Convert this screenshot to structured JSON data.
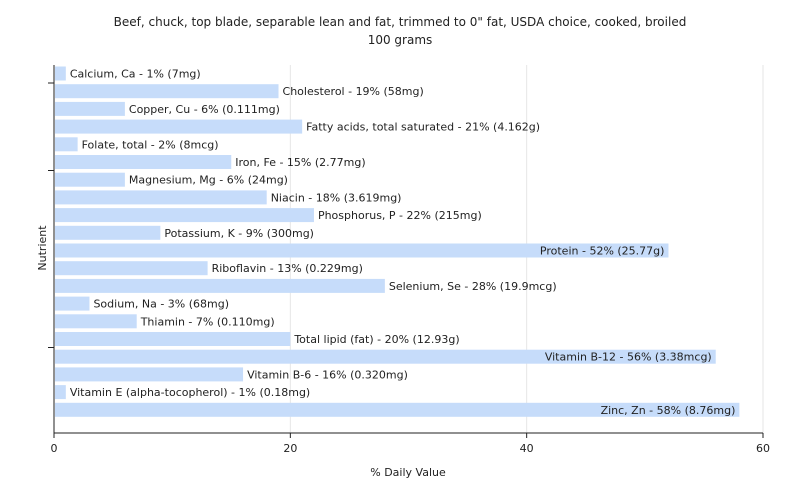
{
  "chart_data": {
    "type": "bar",
    "orientation": "horizontal",
    "title": "Beef, chuck, top blade, separable lean and fat, trimmed to 0\" fat, USDA choice, cooked, broiled",
    "subtitle": "100 grams",
    "xlabel": "% Daily Value",
    "ylabel": "Nutrient",
    "xlim": [
      0,
      60
    ],
    "xticks": [
      0,
      20,
      40,
      60
    ],
    "grid": true,
    "bar_color": "#c6dcfa",
    "bars": [
      {
        "value": 1,
        "label": "Calcium, Ca - 1% (7mg)"
      },
      {
        "value": 19,
        "label": "Cholesterol - 19% (58mg)"
      },
      {
        "value": 6,
        "label": "Copper, Cu - 6% (0.111mg)"
      },
      {
        "value": 21,
        "label": "Fatty acids, total saturated - 21% (4.162g)"
      },
      {
        "value": 2,
        "label": "Folate, total - 2% (8mcg)"
      },
      {
        "value": 15,
        "label": "Iron, Fe - 15% (2.77mg)"
      },
      {
        "value": 6,
        "label": "Magnesium, Mg - 6% (24mg)"
      },
      {
        "value": 18,
        "label": "Niacin - 18% (3.619mg)"
      },
      {
        "value": 22,
        "label": "Phosphorus, P - 22% (215mg)"
      },
      {
        "value": 9,
        "label": "Potassium, K - 9% (300mg)"
      },
      {
        "value": 52,
        "label": "Protein - 52% (25.77g)"
      },
      {
        "value": 13,
        "label": "Riboflavin - 13% (0.229mg)"
      },
      {
        "value": 28,
        "label": "Selenium, Se - 28% (19.9mcg)"
      },
      {
        "value": 3,
        "label": "Sodium, Na - 3% (68mg)"
      },
      {
        "value": 7,
        "label": "Thiamin - 7% (0.110mg)"
      },
      {
        "value": 20,
        "label": "Total lipid (fat) - 20% (12.93g)"
      },
      {
        "value": 56,
        "label": "Vitamin B-12 - 56% (3.38mcg)"
      },
      {
        "value": 16,
        "label": "Vitamin B-6 - 16% (0.320mg)"
      },
      {
        "value": 1,
        "label": "Vitamin E (alpha-tocopherol) - 1% (0.18mg)"
      },
      {
        "value": 58,
        "label": "Zinc, Zn - 58% (8.76mg)"
      }
    ]
  }
}
